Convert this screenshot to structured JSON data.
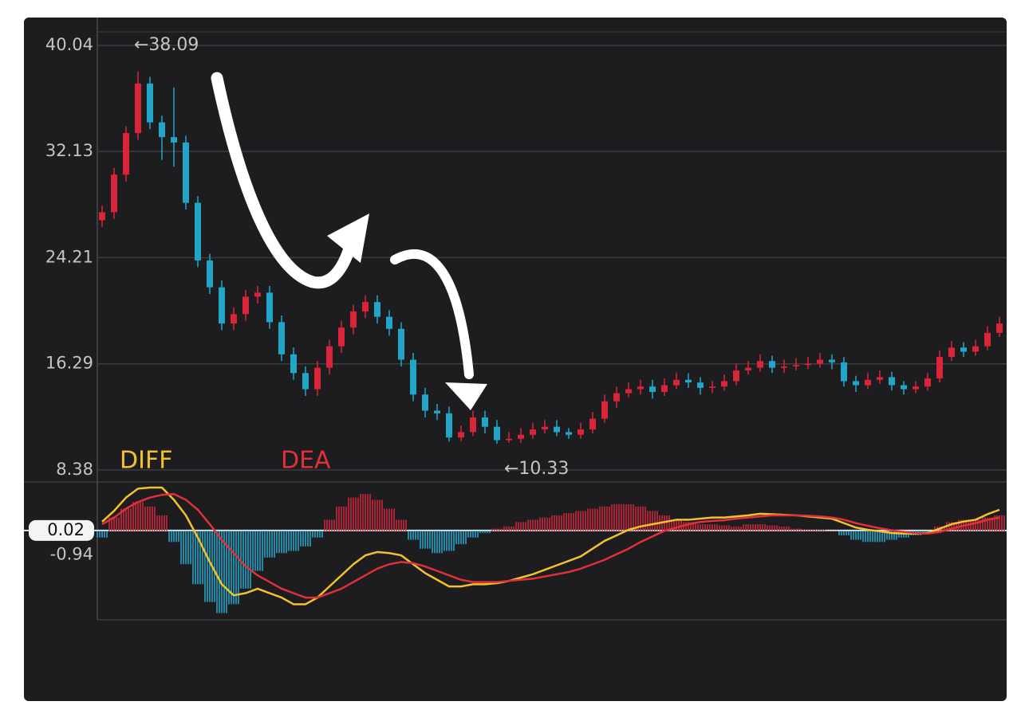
{
  "chart_data": [
    {
      "type": "candlestick",
      "ylim": [
        7.48,
        41.05
      ],
      "yticks": [
        8.38,
        16.29,
        24.21,
        32.13,
        40.04
      ],
      "grid": true,
      "up_color": "#d9243a",
      "down_color": "#22a6c8",
      "annotations": [
        "←38.09",
        "←10.33"
      ],
      "open": [
        27.0,
        27.6,
        30.4,
        33.5,
        37.2,
        34.3,
        33.2,
        32.8,
        28.3,
        24.0,
        22.0,
        19.3,
        20.0,
        21.3,
        21.6,
        19.4,
        17.0,
        15.6,
        14.4,
        16.0,
        17.6,
        19.0,
        20.2,
        20.9,
        19.8,
        18.9,
        16.6,
        14.0,
        12.8,
        12.6,
        10.8,
        11.2,
        12.3,
        11.6,
        10.6,
        10.7,
        11.0,
        11.4,
        11.6,
        11.2,
        11.0,
        11.4,
        12.2,
        13.5,
        14.1,
        14.4,
        14.6,
        14.2,
        14.7,
        15.1,
        14.9,
        14.5,
        14.6,
        15.0,
        15.8,
        16.0,
        16.5,
        16.0,
        16.1,
        16.2,
        16.3,
        16.6,
        16.4,
        15.0,
        14.7,
        15.1,
        15.3,
        14.7,
        14.4,
        14.6,
        15.2,
        16.8,
        17.5,
        17.2,
        17.6,
        18.6
      ],
      "high": [
        28.1,
        30.9,
        34.0,
        38.09,
        37.7,
        34.8,
        36.9,
        33.3,
        28.8,
        24.5,
        22.5,
        20.5,
        21.8,
        22.1,
        22.1,
        19.9,
        17.5,
        16.1,
        16.5,
        18.1,
        19.5,
        20.7,
        21.4,
        21.4,
        20.3,
        19.4,
        17.1,
        14.5,
        13.3,
        13.1,
        11.7,
        12.8,
        12.8,
        12.1,
        11.2,
        11.5,
        11.9,
        12.1,
        12.1,
        11.5,
        11.9,
        12.7,
        14.0,
        14.6,
        14.9,
        15.1,
        15.1,
        15.2,
        15.6,
        15.6,
        15.3,
        15.0,
        15.5,
        16.3,
        16.5,
        17.0,
        16.9,
        16.6,
        16.7,
        16.8,
        17.1,
        17.0,
        16.8,
        15.4,
        15.6,
        15.8,
        15.7,
        15.0,
        15.0,
        15.6,
        17.3,
        18.0,
        17.9,
        18.1,
        19.1,
        19.8
      ],
      "low": [
        26.5,
        27.1,
        29.9,
        33.0,
        33.8,
        31.5,
        31.0,
        27.8,
        23.5,
        21.5,
        18.8,
        18.8,
        19.5,
        20.8,
        18.9,
        16.5,
        15.1,
        13.9,
        13.9,
        15.5,
        17.1,
        18.5,
        19.7,
        19.3,
        18.4,
        16.1,
        13.5,
        12.3,
        12.1,
        10.5,
        10.5,
        10.9,
        11.1,
        10.33,
        10.4,
        10.4,
        10.7,
        11.1,
        10.9,
        10.7,
        10.7,
        11.1,
        11.9,
        13.0,
        13.8,
        14.0,
        13.7,
        13.9,
        14.4,
        14.5,
        14.0,
        14.1,
        14.3,
        14.7,
        15.5,
        15.7,
        15.6,
        15.6,
        15.8,
        15.9,
        16.0,
        15.9,
        14.6,
        14.2,
        14.4,
        14.8,
        14.3,
        14.0,
        14.1,
        14.3,
        14.9,
        16.5,
        16.8,
        16.9,
        17.3,
        18.3
      ],
      "close": [
        27.6,
        30.4,
        33.5,
        37.2,
        34.3,
        33.2,
        32.8,
        28.3,
        24.0,
        22.0,
        19.3,
        20.0,
        21.3,
        21.6,
        19.4,
        17.0,
        15.6,
        14.4,
        16.0,
        17.6,
        19.0,
        20.2,
        20.9,
        19.8,
        18.9,
        16.6,
        14.0,
        12.8,
        12.6,
        10.8,
        11.2,
        12.3,
        11.6,
        10.6,
        10.7,
        11.0,
        11.4,
        11.6,
        11.2,
        11.0,
        11.4,
        12.2,
        13.5,
        14.1,
        14.4,
        14.6,
        14.2,
        14.7,
        15.1,
        14.9,
        14.5,
        14.6,
        15.0,
        15.8,
        16.0,
        16.5,
        16.0,
        16.1,
        16.2,
        16.3,
        16.6,
        16.4,
        15.0,
        14.7,
        15.1,
        15.3,
        14.7,
        14.4,
        14.6,
        15.2,
        16.8,
        17.5,
        17.2,
        17.6,
        18.6,
        19.3
      ]
    },
    {
      "type": "line",
      "ylim": [
        -4.0,
        2.2
      ],
      "yticks": [
        0.02,
        -0.94
      ],
      "series": [
        {
          "name": "DIFF",
          "color": "#f2c12e",
          "values": [
            0.41,
            0.9,
            1.5,
            1.9,
            1.95,
            1.95,
            1.4,
            0.7,
            -0.3,
            -1.4,
            -2.4,
            -2.9,
            -2.8,
            -2.6,
            -2.8,
            -3.0,
            -3.3,
            -3.3,
            -3.0,
            -2.5,
            -2.0,
            -1.5,
            -1.1,
            -0.95,
            -1.0,
            -1.1,
            -1.5,
            -1.9,
            -2.2,
            -2.5,
            -2.5,
            -2.4,
            -2.4,
            -2.35,
            -2.25,
            -2.1,
            -1.95,
            -1.75,
            -1.55,
            -1.35,
            -1.15,
            -0.8,
            -0.45,
            -0.2,
            0.05,
            0.2,
            0.3,
            0.4,
            0.5,
            0.5,
            0.55,
            0.6,
            0.6,
            0.65,
            0.7,
            0.77,
            0.75,
            0.72,
            0.7,
            0.65,
            0.6,
            0.55,
            0.35,
            0.15,
            0.05,
            -0.02,
            -0.1,
            -0.12,
            -0.12,
            -0.1,
            0.1,
            0.3,
            0.42,
            0.5,
            0.75,
            0.95
          ]
        },
        {
          "name": "DEA",
          "color": "#e0303a",
          "values": [
            0.3,
            0.6,
            1.0,
            1.3,
            1.5,
            1.62,
            1.66,
            1.4,
            0.95,
            0.3,
            -0.4,
            -1.0,
            -1.6,
            -2.0,
            -2.3,
            -2.6,
            -2.8,
            -3.0,
            -3.0,
            -2.8,
            -2.6,
            -2.3,
            -2.0,
            -1.7,
            -1.5,
            -1.4,
            -1.45,
            -1.6,
            -1.8,
            -2.0,
            -2.2,
            -2.3,
            -2.3,
            -2.3,
            -2.25,
            -2.2,
            -2.15,
            -2.05,
            -1.95,
            -1.85,
            -1.7,
            -1.5,
            -1.3,
            -1.05,
            -0.8,
            -0.5,
            -0.25,
            0.0,
            0.15,
            0.3,
            0.4,
            0.45,
            0.48,
            0.55,
            0.6,
            0.65,
            0.7,
            0.7,
            0.7,
            0.68,
            0.65,
            0.6,
            0.5,
            0.35,
            0.23,
            0.12,
            0.03,
            -0.05,
            -0.1,
            -0.12,
            -0.05,
            0.1,
            0.23,
            0.35,
            0.5,
            0.6
          ]
        }
      ],
      "bars": {
        "up_color": "#c8283c",
        "down_color": "#22a6c8",
        "values": [
          -0.3,
          0.6,
          1.0,
          1.3,
          1.1,
          0.7,
          -0.5,
          -1.5,
          -2.4,
          -3.2,
          -3.7,
          -3.3,
          -2.6,
          -1.8,
          -1.2,
          -1.0,
          -0.9,
          -0.7,
          -0.3,
          0.5,
          1.1,
          1.5,
          1.66,
          1.4,
          1.0,
          0.5,
          -0.4,
          -0.8,
          -1.0,
          -0.9,
          -0.6,
          -0.3,
          -0.1,
          0.1,
          0.2,
          0.4,
          0.5,
          0.6,
          0.7,
          0.8,
          0.9,
          1.0,
          1.1,
          1.2,
          1.2,
          1.1,
          0.9,
          0.7,
          0.5,
          0.4,
          0.3,
          0.3,
          0.25,
          0.2,
          0.3,
          0.3,
          0.25,
          0.2,
          0.1,
          0.05,
          0.05,
          0.02,
          -0.2,
          -0.4,
          -0.5,
          -0.5,
          -0.4,
          -0.3,
          -0.2,
          -0.1,
          0.2,
          0.4,
          0.5,
          0.5,
          0.6,
          0.7
        ]
      }
    }
  ]
}
